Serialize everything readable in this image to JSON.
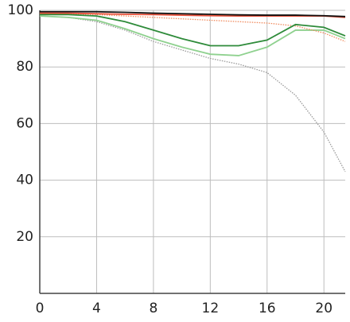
{
  "chart_data": {
    "type": "line",
    "x": [
      0,
      2,
      4,
      6,
      8,
      10,
      12,
      14,
      16,
      18,
      20,
      21.5
    ],
    "series": [
      {
        "color": "#9a9a9a",
        "dotted": true,
        "values": [
          98,
          97.5,
          96,
          93,
          89,
          86,
          83,
          81,
          78,
          70,
          57,
          43
        ]
      },
      {
        "color": "#8fd18f",
        "dotted": false,
        "values": [
          98,
          97.5,
          96.5,
          93.5,
          90,
          87,
          84.5,
          84,
          87,
          93,
          93,
          90
        ]
      },
      {
        "color": "#f08a5d",
        "dotted": true,
        "values": [
          99,
          98.8,
          98.5,
          98,
          97.5,
          97,
          96.5,
          96,
          95.5,
          94.5,
          92,
          89
        ]
      },
      {
        "color": "#e8503a",
        "dotted": false,
        "values": [
          99,
          99,
          98.8,
          98.6,
          98.5,
          98.3,
          98.1,
          98,
          98,
          98,
          98,
          97.5
        ]
      },
      {
        "color": "#2e8b3a",
        "dotted": false,
        "values": [
          98.5,
          98.5,
          98,
          96,
          93,
          90,
          87.5,
          87.5,
          89.5,
          95,
          94,
          91
        ]
      },
      {
        "color": "#111111",
        "dotted": false,
        "values": [
          99.5,
          99.5,
          99.5,
          99.3,
          99,
          98.8,
          98.6,
          98.4,
          98.3,
          98.3,
          98.1,
          97.8
        ]
      }
    ],
    "xlim": [
      0,
      21.5
    ],
    "xticks": [
      0,
      4,
      8,
      12,
      16,
      20
    ],
    "ylim": [
      0,
      100
    ],
    "yticks": [
      20,
      40,
      60,
      80,
      100
    ],
    "grid": true
  }
}
